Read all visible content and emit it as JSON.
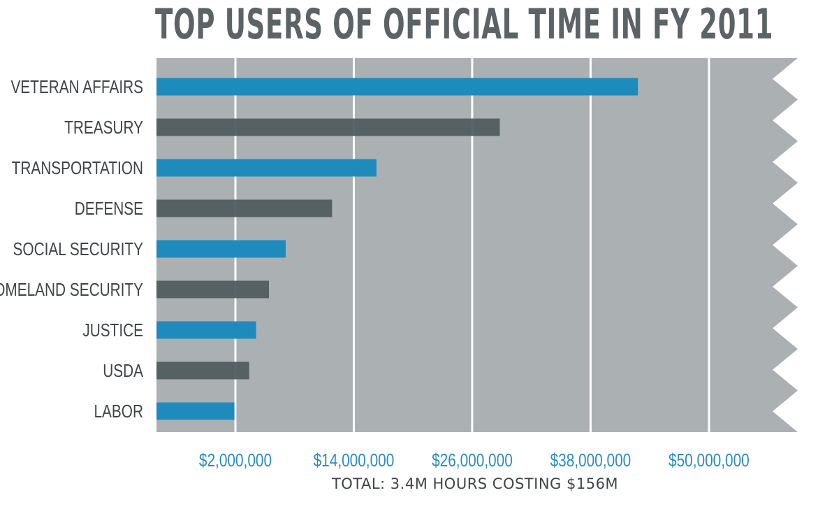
{
  "chart_data": {
    "type": "bar",
    "orientation": "horizontal",
    "title": "TOP USERS OF OFFICIAL TIME IN FY 2011",
    "xlabel": "",
    "ylabel": "",
    "footnote": "TOTAL: 3.4M HOURS COSTING $156M",
    "categories": [
      "VETERAN AFFAIRS",
      "TREASURY",
      "TRANSPORTATION",
      "DEFENSE",
      "SOCIAL SECURITY",
      "HOMELAND SECURITY",
      "JUSTICE",
      "USDA",
      "LABOR"
    ],
    "values": [
      42800000,
      28800000,
      16300000,
      11800000,
      7100000,
      5400000,
      4100000,
      3400000,
      1900000
    ],
    "xlim": [
      -6000000,
      59000000
    ],
    "ticks": [
      2000000,
      14000000,
      26000000,
      38000000,
      50000000
    ],
    "tick_labels": [
      "$2,000,000",
      "$14,000,000",
      "$26,000,000",
      "$38,000,000",
      "$50,000,000"
    ],
    "grid": true,
    "colors": {
      "bar_primary": "#1f8bbd",
      "bar_secondary": "#4f5a5c",
      "plot_background": "#abb1b3",
      "gridline": "#ffffff",
      "title": "#5b6366",
      "tick_text": "#2a8cbd",
      "label_text": "#3f4547"
    }
  }
}
